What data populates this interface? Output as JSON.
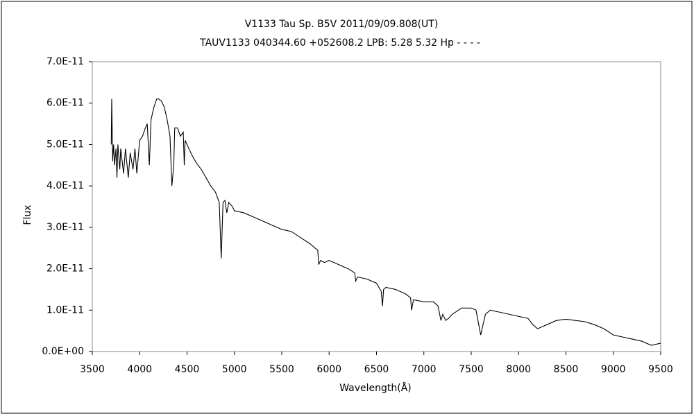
{
  "chart_data": {
    "type": "line",
    "title": "V1133 Tau    Sp. B5V    2011/09/09.808(UT)",
    "subtitle": "TAUV1133 040344.60 +052608.2 LPB: 5.28 5.32 Hp - - - -",
    "x_label": "Wavelength(Å)",
    "y_label": "Flux",
    "color": "#000000",
    "grid": false,
    "xlim": [
      3500,
      9500
    ],
    "xticks": [
      3500,
      4000,
      4500,
      5000,
      5500,
      6000,
      6500,
      7000,
      7500,
      8000,
      8500,
      9000,
      9500
    ],
    "ylim": [
      0,
      7e-11
    ],
    "yticks": [
      {
        "value": 0,
        "label": "0.0E+00"
      },
      {
        "value": 1e-11,
        "label": "1.0E-11"
      },
      {
        "value": 2e-11,
        "label": "2.0E-11"
      },
      {
        "value": 3e-11,
        "label": "3.0E-11"
      },
      {
        "value": 4e-11,
        "label": "4.0E-11"
      },
      {
        "value": 5e-11,
        "label": "5.0E-11"
      },
      {
        "value": 6e-11,
        "label": "6.0E-11"
      },
      {
        "value": 7e-11,
        "label": "7.0E-11"
      }
    ],
    "x": [
      3700,
      3705,
      3715,
      3725,
      3735,
      3750,
      3760,
      3770,
      3790,
      3800,
      3830,
      3850,
      3880,
      3900,
      3930,
      3950,
      3970,
      4000,
      4030,
      4060,
      4080,
      4102,
      4120,
      4150,
      4180,
      4200,
      4230,
      4260,
      4290,
      4320,
      4340,
      4360,
      4370,
      4400,
      4430,
      4460,
      4471,
      4480,
      4500,
      4550,
      4600,
      4650,
      4700,
      4750,
      4800,
      4840,
      4861,
      4880,
      4900,
      4920,
      4940,
      4980,
      5000,
      5100,
      5200,
      5300,
      5400,
      5500,
      5600,
      5700,
      5800,
      5850,
      5880,
      5890,
      5910,
      5950,
      6000,
      6100,
      6200,
      6270,
      6280,
      6300,
      6400,
      6500,
      6550,
      6563,
      6575,
      6600,
      6700,
      6800,
      6860,
      6870,
      6890,
      7000,
      7100,
      7150,
      7180,
      7200,
      7230,
      7260,
      7300,
      7400,
      7500,
      7550,
      7600,
      7620,
      7650,
      7700,
      7800,
      7900,
      8000,
      8100,
      8150,
      8200,
      8250,
      8300,
      8400,
      8500,
      8600,
      8700,
      8800,
      8900,
      9000,
      9100,
      9200,
      9300,
      9400,
      9500
    ],
    "values": [
      5e-11,
      6.1e-11,
      4.6e-11,
      5e-11,
      4.5e-11,
      4.9e-11,
      4.2e-11,
      5e-11,
      4.4e-11,
      4.9e-11,
      4.3e-11,
      4.9e-11,
      4.2e-11,
      4.8e-11,
      4.4e-11,
      4.9e-11,
      4.3e-11,
      5.1e-11,
      5.2e-11,
      5.4e-11,
      5.5e-11,
      4.5e-11,
      5.6e-11,
      5.9e-11,
      6.1e-11,
      6.1e-11,
      6.05e-11,
      5.9e-11,
      5.6e-11,
      5.2e-11,
      4e-11,
      4.5e-11,
      5.4e-11,
      5.4e-11,
      5.2e-11,
      5.3e-11,
      4.5e-11,
      5.1e-11,
      5e-11,
      4.75e-11,
      4.55e-11,
      4.4e-11,
      4.2e-11,
      4e-11,
      3.85e-11,
      3.6e-11,
      2.25e-11,
      3.6e-11,
      3.65e-11,
      3.35e-11,
      3.6e-11,
      3.5e-11,
      3.4e-11,
      3.35e-11,
      3.25e-11,
      3.15e-11,
      3.05e-11,
      2.95e-11,
      2.9e-11,
      2.75e-11,
      2.6e-11,
      2.5e-11,
      2.45e-11,
      2.1e-11,
      2.2e-11,
      2.15e-11,
      2.2e-11,
      2.1e-11,
      2e-11,
      1.9e-11,
      1.7e-11,
      1.8e-11,
      1.75e-11,
      1.65e-11,
      1.45e-11,
      1.1e-11,
      1.5e-11,
      1.55e-11,
      1.5e-11,
      1.4e-11,
      1.3e-11,
      1e-11,
      1.25e-11,
      1.2e-11,
      1.2e-11,
      1.1e-11,
      7.5e-12,
      9e-12,
      7.5e-12,
      8e-12,
      9e-12,
      1.05e-11,
      1.05e-11,
      1e-11,
      4e-12,
      6e-12,
      9e-12,
      1e-11,
      9.5e-12,
      9e-12,
      8.5e-12,
      8e-12,
      6.5e-12,
      5.5e-12,
      6e-12,
      6.5e-12,
      7.5e-12,
      7.8e-12,
      7.5e-12,
      7.2e-12,
      6.5e-12,
      5.5e-12,
      4e-12,
      3.5e-12,
      3e-12,
      2.5e-12,
      1.5e-12,
      2e-12
    ]
  }
}
